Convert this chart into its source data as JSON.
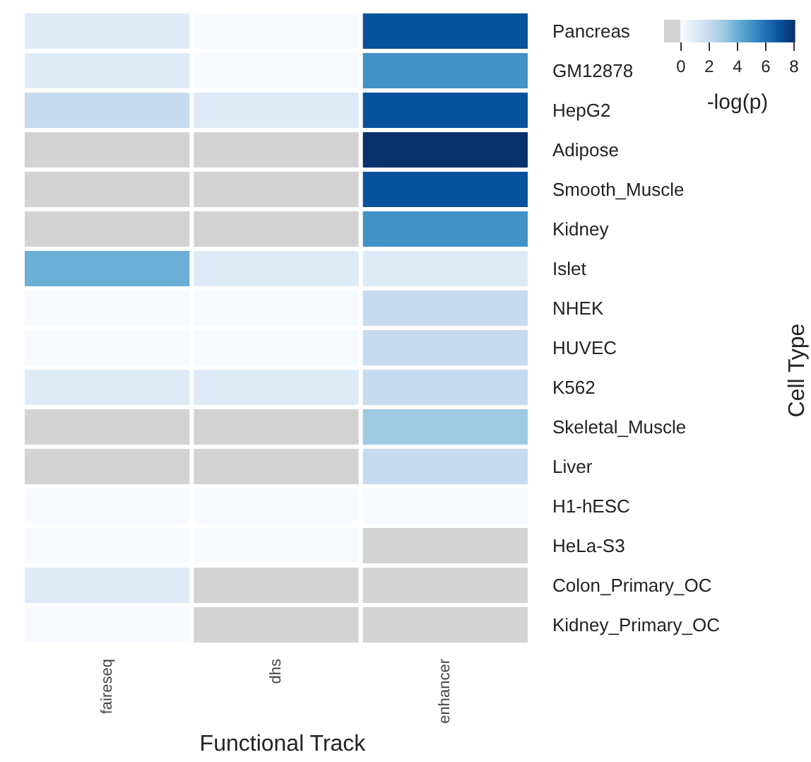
{
  "chart_data": {
    "type": "heatmap",
    "xlabel": "Functional Track",
    "ylabel": "Cell Type",
    "clabel": "-log(p)",
    "categories": [
      "faireseq",
      "dhs",
      "enhancer"
    ],
    "y_categories": [
      "Pancreas",
      "GM12878",
      "HepG2",
      "Adipose",
      "Smooth_Muscle",
      "Kidney",
      "Islet",
      "NHEK",
      "HUVEC",
      "K562",
      "Skeletal_Muscle",
      "Liver",
      "H1-hESC",
      "HeLa-S3",
      "Colon_Primary_OC",
      "Kidney_Primary_OC"
    ],
    "cells": [
      [
        1,
        0,
        7
      ],
      [
        1,
        0,
        5
      ],
      [
        2,
        1,
        7
      ],
      [
        null,
        null,
        8
      ],
      [
        null,
        null,
        7
      ],
      [
        null,
        null,
        5
      ],
      [
        4,
        1,
        1
      ],
      [
        0,
        0,
        2
      ],
      [
        0,
        0,
        2
      ],
      [
        1,
        1,
        2
      ],
      [
        null,
        null,
        3
      ],
      [
        null,
        null,
        2
      ],
      [
        0,
        0,
        0
      ],
      [
        0,
        0,
        null
      ],
      [
        1,
        null,
        null
      ],
      [
        0,
        null,
        null
      ]
    ],
    "clim": [
      0,
      8
    ],
    "cticks": [
      0,
      2,
      4,
      6,
      8
    ]
  }
}
